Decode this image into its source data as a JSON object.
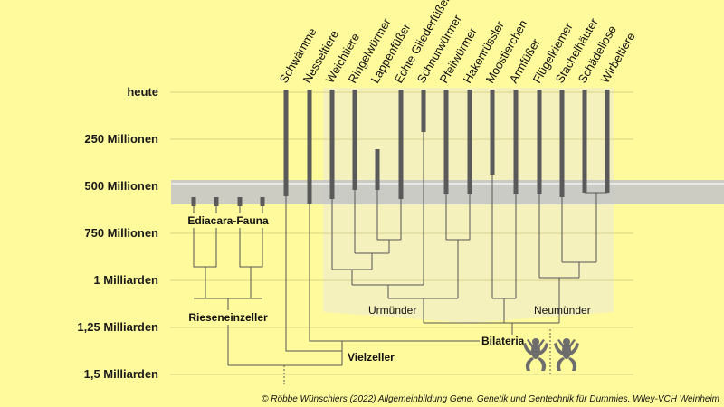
{
  "time_axis": {
    "labels": [
      "heute",
      "250 Millionen",
      "500 Millionen",
      "750 Millionen",
      "1 Milliarden",
      "1,25 Milliarden",
      "1,5 Milliarden"
    ]
  },
  "taxa": [
    "Schwämme",
    "Nesseltiere",
    "Weichtiere",
    "Ringelwürmer",
    "Lappenfüßer",
    "Echte Gliederfüßer",
    "Schnurwürmer",
    "Pfeilwürmer",
    "Hakenrüssler",
    "Moostierchen",
    "Armfüßer",
    "Flügelkiemer",
    "Stachelhäuter",
    "Schädellose",
    "Wirbeltiere"
  ],
  "clades": {
    "ediacara": "Ediacara-Fauna",
    "riesen": "Rieseneinzeller",
    "urmuender": "Urmünder",
    "neumuender": "Neumünder",
    "bilateria": "Bilateria",
    "vielzeller": "Vielzeller"
  },
  "credit": "© Röbbe Wünschiers (2022) Allgemeinbildung Gene, Genetik und Gentechnik für Dummies. Wiley-VCH Weinheim",
  "colors": {
    "background": "#fffa9c",
    "band": "#c8c8c8",
    "bilateria_area": "#f2efb8",
    "lineage": "#555555"
  }
}
